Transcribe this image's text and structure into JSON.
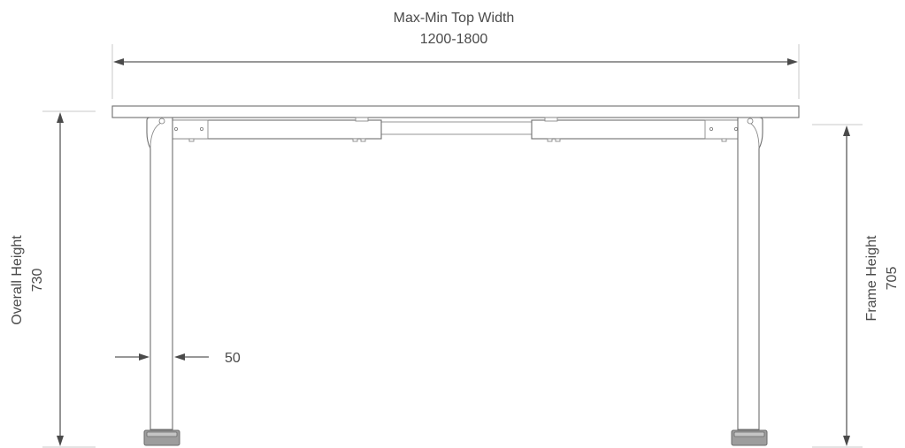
{
  "dimensions": {
    "top_width": {
      "label": "Max-Min Top Width",
      "value": "1200-1800"
    },
    "overall_height": {
      "label": "Overall Height",
      "value": "730"
    },
    "frame_height": {
      "label": "Frame Height",
      "value": "705"
    },
    "leg_width": {
      "value": "50"
    }
  },
  "colors": {
    "line": "#5a5a5a",
    "text": "#4a4a4a",
    "foot": "#9d9d9d"
  }
}
